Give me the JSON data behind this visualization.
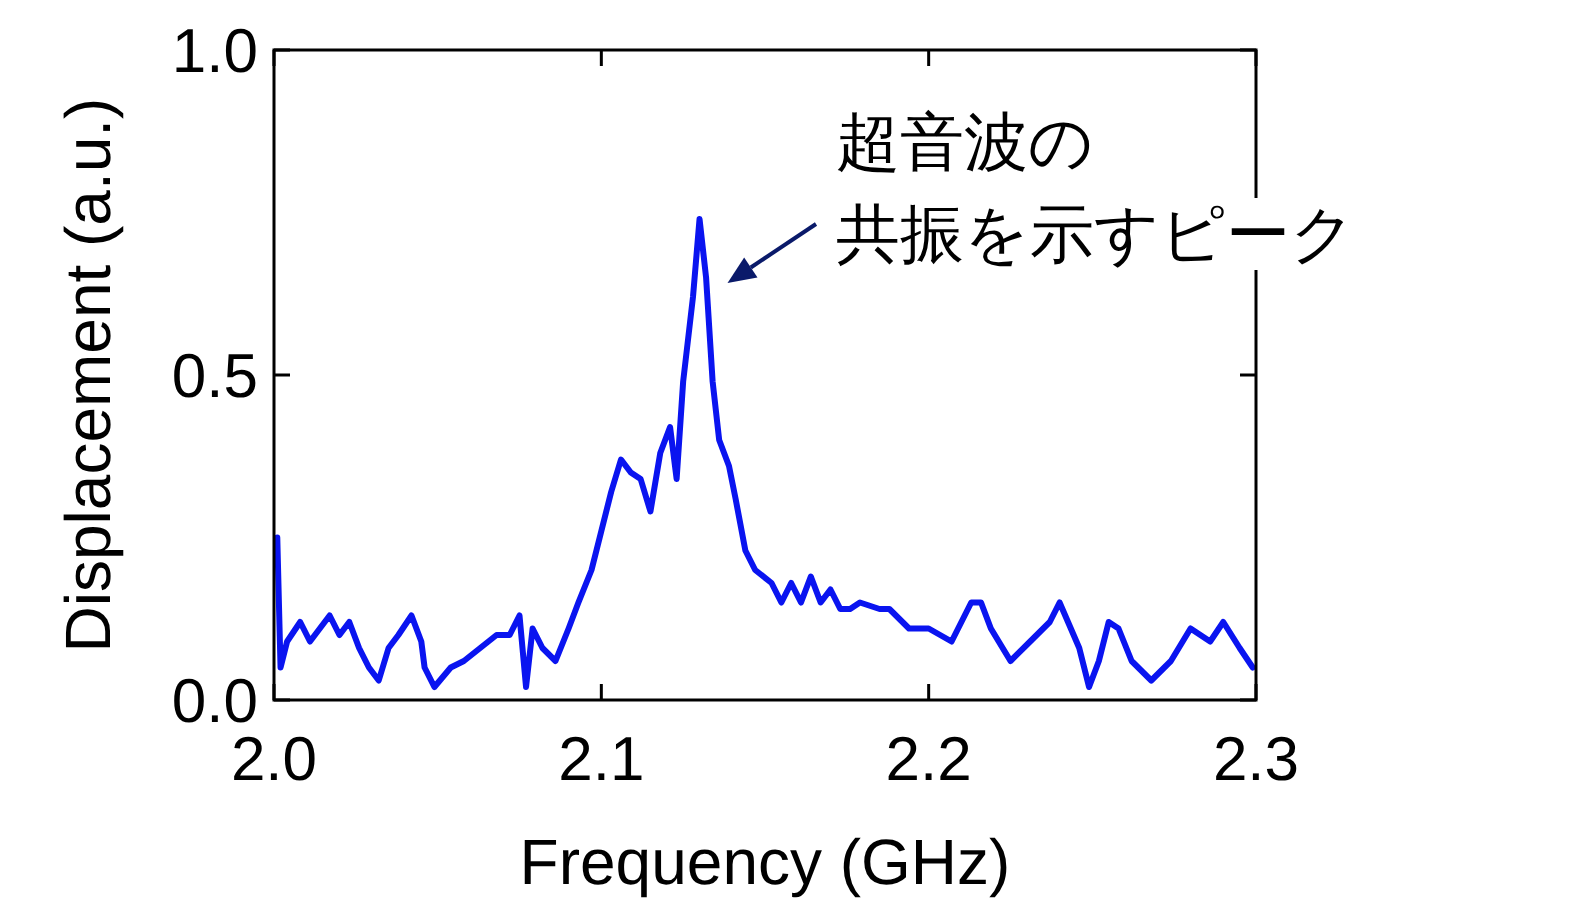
{
  "chart_data": {
    "type": "line",
    "xlabel": "Frequency (GHz)",
    "ylabel": "Displacement (a.u.)",
    "x": [
      2.001,
      2.002,
      2.004,
      2.008,
      2.011,
      2.014,
      2.017,
      2.02,
      2.023,
      2.026,
      2.029,
      2.032,
      2.035,
      2.038,
      2.042,
      2.045,
      2.046,
      2.049,
      2.054,
      2.058,
      2.063,
      2.068,
      2.072,
      2.075,
      2.077,
      2.079,
      2.082,
      2.086,
      2.09,
      2.093,
      2.097,
      2.1,
      2.103,
      2.106,
      2.109,
      2.112,
      2.115,
      2.118,
      2.121,
      2.123,
      2.125,
      2.128,
      2.13,
      2.132,
      2.134,
      2.136,
      2.139,
      2.141,
      2.144,
      2.147,
      2.152,
      2.155,
      2.158,
      2.161,
      2.164,
      2.167,
      2.17,
      2.173,
      2.176,
      2.179,
      2.185,
      2.188,
      2.194,
      2.2,
      2.207,
      2.213,
      2.216,
      2.219,
      2.225,
      2.231,
      2.237,
      2.24,
      2.246,
      2.249,
      2.252,
      2.255,
      2.258,
      2.262,
      2.268,
      2.274,
      2.28,
      2.286,
      2.29,
      2.295,
      2.299
    ],
    "series": [
      {
        "color": "#0a14f0",
        "values": [
          0.25,
          0.05,
          0.09,
          0.12,
          0.09,
          0.11,
          0.13,
          0.1,
          0.12,
          0.08,
          0.05,
          0.03,
          0.08,
          0.1,
          0.13,
          0.09,
          0.05,
          0.02,
          0.05,
          0.06,
          0.08,
          0.1,
          0.1,
          0.13,
          0.02,
          0.11,
          0.08,
          0.06,
          0.11,
          0.15,
          0.2,
          0.26,
          0.32,
          0.37,
          0.35,
          0.34,
          0.29,
          0.38,
          0.42,
          0.34,
          0.49,
          0.62,
          0.74,
          0.65,
          0.49,
          0.4,
          0.36,
          0.31,
          0.23,
          0.2,
          0.18,
          0.15,
          0.18,
          0.15,
          0.19,
          0.15,
          0.17,
          0.14,
          0.14,
          0.15,
          0.14,
          0.14,
          0.11,
          0.11,
          0.09,
          0.15,
          0.15,
          0.11,
          0.06,
          0.09,
          0.12,
          0.15,
          0.08,
          0.02,
          0.06,
          0.12,
          0.11,
          0.06,
          0.03,
          0.06,
          0.11,
          0.09,
          0.12,
          0.08,
          0.05
        ]
      }
    ],
    "xlim": [
      2.0,
      2.3
    ],
    "ylim": [
      0,
      1.0
    ],
    "xticks": [
      {
        "value": 2.0,
        "label": "2.0"
      },
      {
        "value": 2.1,
        "label": "2.1"
      },
      {
        "value": 2.2,
        "label": "2.2"
      },
      {
        "value": 2.3,
        "label": "2.3"
      }
    ],
    "yticks": [
      {
        "value": 0,
        "label": "0.0"
      },
      {
        "value": 0.5,
        "label": "0.5"
      },
      {
        "value": 1.0,
        "label": "1.0"
      }
    ],
    "annotations": [
      "超音波の",
      {
        "text": "共振を示すピーク",
        "x": 2.13,
        "y": 0.74
      }
    ]
  }
}
